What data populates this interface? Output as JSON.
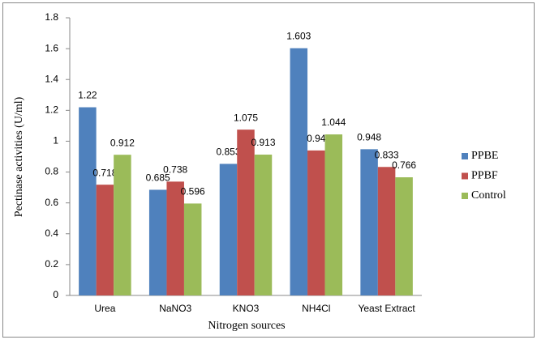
{
  "chart_data": {
    "type": "bar",
    "x_label": "Nitrogen sources",
    "y_label": "Pectinase activities (U/ml)",
    "categories": [
      "Urea",
      "NaNO3",
      "KNO3",
      "NH4Cl",
      "Yeast Extract"
    ],
    "series": [
      {
        "name": "PPBE",
        "color": "#4f81bd",
        "values": [
          1.22,
          0.685,
          0.853,
          1.603,
          0.948
        ]
      },
      {
        "name": "PPBF",
        "color": "#c0504d",
        "values": [
          0.718,
          0.738,
          1.075,
          0.94,
          0.833
        ]
      },
      {
        "name": "Control",
        "color": "#9bbb59",
        "values": [
          0.912,
          0.596,
          0.913,
          1.044,
          0.766
        ]
      }
    ],
    "ylim": [
      0,
      1.8
    ],
    "yticks": [
      0,
      0.2,
      0.4,
      0.6,
      0.8,
      1,
      1.2,
      1.4,
      1.6,
      1.8
    ],
    "grid": false,
    "legend": "right"
  }
}
